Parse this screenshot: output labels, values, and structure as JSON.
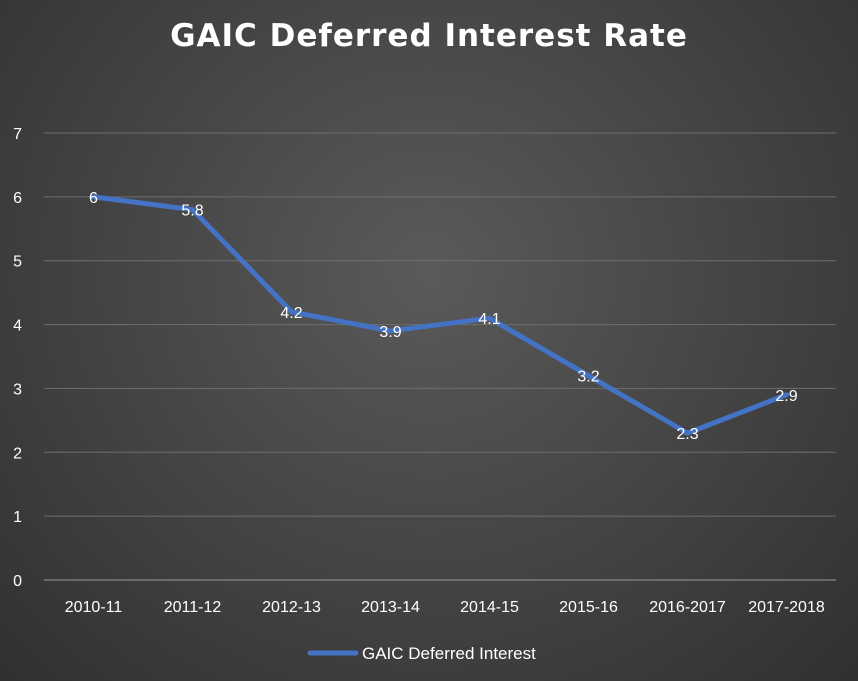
{
  "chart_data": {
    "type": "line",
    "title": "GAIC Deferred Interest Rate",
    "xlabel": "",
    "ylabel": "",
    "categories": [
      "2010-11",
      "2011-12",
      "2012-13",
      "2013-14",
      "2014-15",
      "2015-16",
      "2016-2017",
      "2017-2018"
    ],
    "series": [
      {
        "name": "GAIC Deferred Interest",
        "values": [
          6,
          5.8,
          4.2,
          3.9,
          4.1,
          3.2,
          2.3,
          2.9
        ],
        "color": "#4472C4"
      }
    ],
    "ylim": [
      0,
      7
    ],
    "yticks": [
      0,
      1,
      2,
      3,
      4,
      5,
      6,
      7
    ],
    "grid": true,
    "data_labels": true,
    "legend_position": "bottom"
  }
}
